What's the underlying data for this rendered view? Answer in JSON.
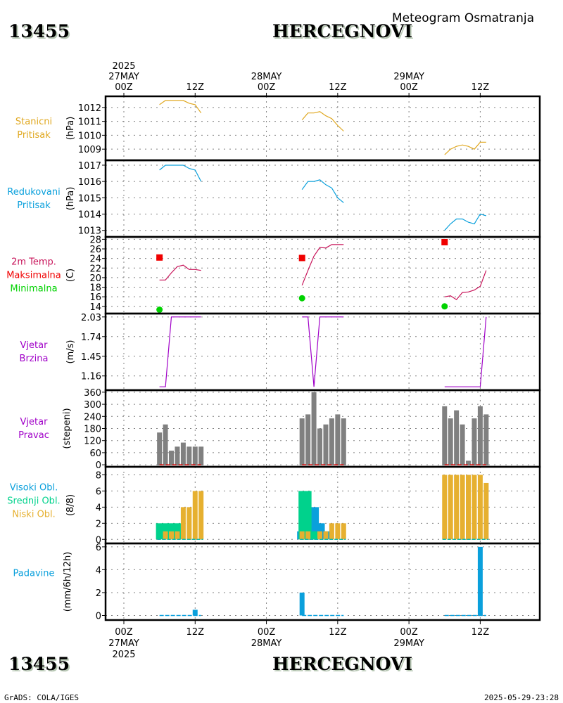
{
  "header": {
    "station_id": "13455",
    "station_name": "HERCEGNOVI",
    "subtitle": "Meteogram Osmatranja"
  },
  "footer": {
    "station_id": "13455",
    "station_name": "HERCEGNOVI",
    "credit": "GrADS: COLA/IGES",
    "timestamp": "2025-05-29-23:28"
  },
  "time_axis": {
    "top_labels": [
      {
        "hour": 0,
        "lines": [
          "2025",
          "27MAY",
          "00Z"
        ]
      },
      {
        "hour": 12,
        "lines": [
          "12Z"
        ]
      },
      {
        "hour": 24,
        "lines": [
          "28MAY",
          "00Z"
        ]
      },
      {
        "hour": 36,
        "lines": [
          "12Z"
        ]
      },
      {
        "hour": 48,
        "lines": [
          "29MAY",
          "00Z"
        ]
      },
      {
        "hour": 60,
        "lines": [
          "12Z"
        ]
      }
    ],
    "bottom_labels": [
      {
        "hour": 0,
        "lines": [
          "00Z",
          "27MAY",
          "2025"
        ]
      },
      {
        "hour": 12,
        "lines": [
          "12Z"
        ]
      },
      {
        "hour": 24,
        "lines": [
          "00Z",
          "28MAY"
        ]
      },
      {
        "hour": 36,
        "lines": [
          "12Z"
        ]
      },
      {
        "hour": 48,
        "lines": [
          "00Z",
          "29MAY"
        ]
      },
      {
        "hour": 60,
        "lines": [
          "12Z"
        ]
      }
    ],
    "range_hours": [
      -3,
      70
    ]
  },
  "colors": {
    "station_pressure": "#e0a820",
    "reduced_pressure": "#0aa0dc",
    "temperature": "#c8145a",
    "tmax": "#f00000",
    "tmin": "#00d200",
    "wind_speed": "#a000c8",
    "wind_dir": "#808080",
    "wind_dir_baseline": "#e01010",
    "cloud_high": "#0aa0dc",
    "cloud_mid": "#00d28c",
    "cloud_low": "#e6b030",
    "precip": "#0aa0dc",
    "grid": "#808080"
  },
  "chart_data": [
    {
      "type": "line",
      "id": "stanicni",
      "labels": [
        "Stanicni",
        "Pritisak"
      ],
      "ylabel": "(hPa)",
      "yticks": [
        1009,
        1010,
        1011,
        1012
      ],
      "ylim": [
        1008.2,
        1012.8
      ],
      "series": [
        {
          "name": "Stanicni Pritisak",
          "x": [
            6,
            7,
            8,
            9,
            10,
            11,
            12,
            13
          ],
          "y": [
            1012.2,
            1012.5,
            1012.5,
            1012.5,
            1012.5,
            1012.3,
            1012.2,
            1011.6
          ]
        },
        {
          "name": "Stanicni Pritisak",
          "x": [
            30,
            31,
            32,
            33,
            34,
            35,
            36,
            37
          ],
          "y": [
            1011.1,
            1011.6,
            1011.6,
            1011.7,
            1011.4,
            1011.2,
            1010.7,
            1010.3
          ]
        },
        {
          "name": "Stanicni Pritisak",
          "x": [
            54,
            55,
            56,
            57,
            58,
            59,
            60,
            61
          ],
          "y": [
            1008.6,
            1009.0,
            1009.2,
            1009.3,
            1009.2,
            1009.0,
            1009.5,
            1009.5
          ]
        }
      ]
    },
    {
      "type": "line",
      "id": "redukovani",
      "labels": [
        "Redukovani",
        "Pritisak"
      ],
      "ylabel": "(hPa)",
      "yticks": [
        1013,
        1014,
        1015,
        1016,
        1017
      ],
      "ylim": [
        1012.6,
        1017.3
      ],
      "series": [
        {
          "name": "Redukovani Pritisak",
          "x": [
            6,
            7,
            8,
            9,
            10,
            11,
            12,
            13
          ],
          "y": [
            1016.7,
            1017.0,
            1017.0,
            1017.0,
            1017.0,
            1016.8,
            1016.7,
            1016.0
          ]
        },
        {
          "name": "Redukovani Pritisak",
          "x": [
            30,
            31,
            32,
            33,
            34,
            35,
            36,
            37
          ],
          "y": [
            1015.5,
            1016.0,
            1016.0,
            1016.1,
            1015.8,
            1015.6,
            1015.0,
            1014.7
          ]
        },
        {
          "name": "Redukovani Pritisak",
          "x": [
            54,
            55,
            56,
            57,
            58,
            59,
            60,
            61
          ],
          "y": [
            1013.0,
            1013.4,
            1013.7,
            1013.7,
            1013.5,
            1013.4,
            1014.0,
            1013.9
          ]
        }
      ]
    },
    {
      "type": "line",
      "id": "temperatura",
      "labels": [
        "2m Temp.",
        "Maksimalna",
        "Minimalna"
      ],
      "ylabel": "(C)",
      "yticks": [
        14,
        16,
        18,
        20,
        22,
        24,
        26,
        28
      ],
      "ylim": [
        12.5,
        28.5
      ],
      "series": [
        {
          "name": "2m Temp.",
          "x": [
            6,
            7,
            8,
            9,
            10,
            11,
            12,
            13
          ],
          "y": [
            19.5,
            19.5,
            21.0,
            22.3,
            22.6,
            21.7,
            21.7,
            21.5
          ]
        },
        {
          "name": "2m Temp.",
          "x": [
            30,
            31,
            32,
            33,
            34,
            35,
            36,
            37
          ],
          "y": [
            18.4,
            21.5,
            24.5,
            26.3,
            26.2,
            26.9,
            26.9,
            26.9
          ]
        },
        {
          "name": "2m Temp.",
          "x": [
            54,
            55,
            56,
            57,
            58,
            59,
            60,
            61
          ],
          "y": [
            16.0,
            16.2,
            15.4,
            16.9,
            17.0,
            17.4,
            18.2,
            21.5
          ]
        }
      ],
      "markers": [
        {
          "name": "Maksimalna",
          "shape": "square",
          "points": [
            {
              "x": 6,
              "y": 24.2
            },
            {
              "x": 30,
              "y": 24.1
            },
            {
              "x": 54,
              "y": 27.4
            }
          ]
        },
        {
          "name": "Minimalna",
          "shape": "circle",
          "points": [
            {
              "x": 6,
              "y": 13.3
            },
            {
              "x": 30,
              "y": 15.7
            },
            {
              "x": 54,
              "y": 14.0
            }
          ]
        }
      ]
    },
    {
      "type": "line",
      "id": "vjetar-brzina",
      "labels": [
        "Vjetar",
        "Brzina"
      ],
      "ylabel": "(m/s)",
      "yticks": [
        1.16,
        1.45,
        1.74,
        2.03
      ],
      "ylim": [
        0.95,
        2.08
      ],
      "series": [
        {
          "name": "Vjetar Brzina",
          "x": [
            6,
            7,
            8,
            9,
            10,
            11,
            12,
            13
          ],
          "y": [
            1.0,
            1.0,
            2.03,
            2.03,
            2.03,
            2.03,
            2.03,
            2.03
          ]
        },
        {
          "name": "Vjetar Brzina",
          "x": [
            30,
            31,
            32,
            33,
            34,
            35,
            36,
            37
          ],
          "y": [
            2.03,
            2.03,
            1.0,
            2.03,
            2.03,
            2.03,
            2.03,
            2.03
          ]
        },
        {
          "name": "Vjetar Brzina",
          "x": [
            54,
            55,
            56,
            57,
            58,
            59,
            60,
            61
          ],
          "y": [
            1.0,
            1.0,
            1.0,
            1.0,
            1.0,
            1.0,
            1.0,
            2.03
          ]
        }
      ]
    },
    {
      "type": "bar",
      "id": "vjetar-pravac",
      "labels": [
        "Vjetar",
        "Pravac"
      ],
      "ylabel": "(stepeni)",
      "yticks": [
        0,
        60,
        120,
        180,
        240,
        300,
        360
      ],
      "ylim": [
        -10,
        370
      ],
      "x": [
        6,
        7,
        8,
        9,
        10,
        11,
        12,
        13,
        30,
        31,
        32,
        33,
        34,
        35,
        36,
        37,
        54,
        55,
        56,
        57,
        58,
        59,
        60,
        61
      ],
      "values": [
        160,
        200,
        70,
        90,
        110,
        90,
        90,
        90,
        230,
        250,
        360,
        180,
        200,
        230,
        250,
        230,
        290,
        230,
        270,
        200,
        20,
        230,
        290,
        250
      ]
    },
    {
      "type": "bar",
      "id": "oblaci",
      "labels": [
        "Visoki Obl.",
        "Srednji Obl.",
        "Niski Obl."
      ],
      "ylabel": "(8/8)",
      "yticks": [
        0,
        2,
        4,
        6,
        8
      ],
      "ylim": [
        -0.5,
        9
      ],
      "x": [
        6,
        7,
        8,
        9,
        10,
        11,
        12,
        13,
        30,
        31,
        32,
        33,
        34,
        35,
        36,
        37,
        54,
        55,
        56,
        57,
        58,
        59,
        60,
        61
      ],
      "series": [
        {
          "name": "Visoki Obl.",
          "values": [
            0,
            0,
            0,
            0,
            0,
            0,
            0,
            0,
            1,
            1,
            4,
            2,
            1,
            0,
            0,
            0,
            0,
            0,
            0,
            0,
            0,
            0,
            0,
            0
          ]
        },
        {
          "name": "Srednji Obl.",
          "values": [
            2,
            2,
            2,
            2,
            0,
            0,
            0,
            0,
            6,
            6,
            1,
            0,
            0,
            0,
            0,
            0,
            0,
            0,
            0,
            0,
            0,
            0,
            0,
            0
          ]
        },
        {
          "name": "Niski Obl.",
          "values": [
            0,
            1,
            1,
            1,
            4,
            4,
            6,
            6,
            1,
            1,
            0,
            1,
            1,
            2,
            2,
            2,
            8,
            8,
            8,
            8,
            8,
            8,
            8,
            7
          ]
        }
      ]
    },
    {
      "type": "bar",
      "id": "padavine",
      "labels": [
        "Padavine"
      ],
      "ylabel": "(mm/6h/12h)",
      "yticks": [
        0,
        2,
        4,
        6
      ],
      "ylim": [
        -0.4,
        6.3
      ],
      "x": [
        6,
        7,
        8,
        9,
        10,
        11,
        12,
        13,
        30,
        31,
        32,
        33,
        34,
        35,
        36,
        37,
        54,
        55,
        56,
        57,
        58,
        59,
        60,
        61
      ],
      "values": [
        0,
        0,
        0,
        0,
        0,
        0,
        0.5,
        0,
        2.0,
        0,
        0,
        0,
        0,
        0,
        0,
        0,
        0,
        0,
        0,
        0,
        0,
        0,
        6.0,
        0
      ]
    }
  ]
}
